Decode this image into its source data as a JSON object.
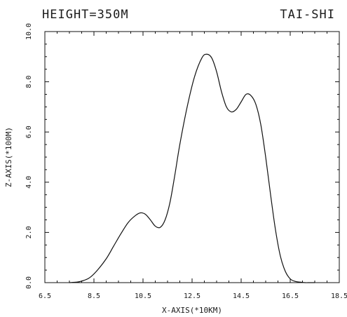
{
  "header": {
    "left": "HEIGHT=350M",
    "right": "TAI-SHI"
  },
  "chart_data": {
    "type": "line",
    "title": "HEIGHT=350M",
    "subtitle": "TAI-SHI",
    "xlabel": "X-AXIS(*10KM)",
    "ylabel": "Z-AXIS(*100M)",
    "xlim": [
      6.5,
      18.5
    ],
    "ylim": [
      0.0,
      10.0
    ],
    "x_ticks": [
      6.5,
      8.5,
      10.5,
      12.5,
      14.5,
      16.5,
      18.5
    ],
    "x_tick_labels": [
      "6.5",
      "8.5",
      "10.5",
      "12.5",
      "14.5",
      "16.5",
      "18.5"
    ],
    "y_ticks": [
      0.0,
      2.0,
      4.0,
      6.0,
      8.0,
      10.0
    ],
    "y_tick_labels": [
      "0.0",
      "2.0",
      "4.0",
      "6.0",
      "8.0",
      "10.0"
    ],
    "grid": false,
    "colors": {
      "line": "#111111",
      "frame": "#111111",
      "background": "#ffffff"
    },
    "series": [
      {
        "x": [
          7.5,
          7.8,
          8.0,
          8.3,
          8.6,
          9.0,
          9.3,
          9.6,
          9.9,
          10.2,
          10.4,
          10.6,
          10.8,
          11.0,
          11.2,
          11.4,
          11.6,
          11.8,
          12.0,
          12.3,
          12.6,
          12.9,
          13.1,
          13.3,
          13.5,
          13.7,
          13.9,
          14.1,
          14.3,
          14.5,
          14.7,
          14.9,
          15.1,
          15.3,
          15.5,
          15.7,
          15.9,
          16.1,
          16.3,
          16.5,
          16.7,
          16.9,
          17.1,
          17.3,
          17.5
        ],
        "y": [
          0.0,
          0.02,
          0.06,
          0.18,
          0.45,
          0.95,
          1.45,
          1.95,
          2.4,
          2.68,
          2.78,
          2.72,
          2.5,
          2.25,
          2.2,
          2.5,
          3.2,
          4.3,
          5.5,
          7.0,
          8.2,
          8.95,
          9.1,
          8.95,
          8.4,
          7.6,
          7.0,
          6.8,
          6.9,
          7.2,
          7.5,
          7.45,
          7.1,
          6.3,
          5.0,
          3.5,
          2.1,
          1.05,
          0.45,
          0.15,
          0.05,
          0.02,
          0.0,
          0.0,
          0.0
        ]
      }
    ]
  }
}
